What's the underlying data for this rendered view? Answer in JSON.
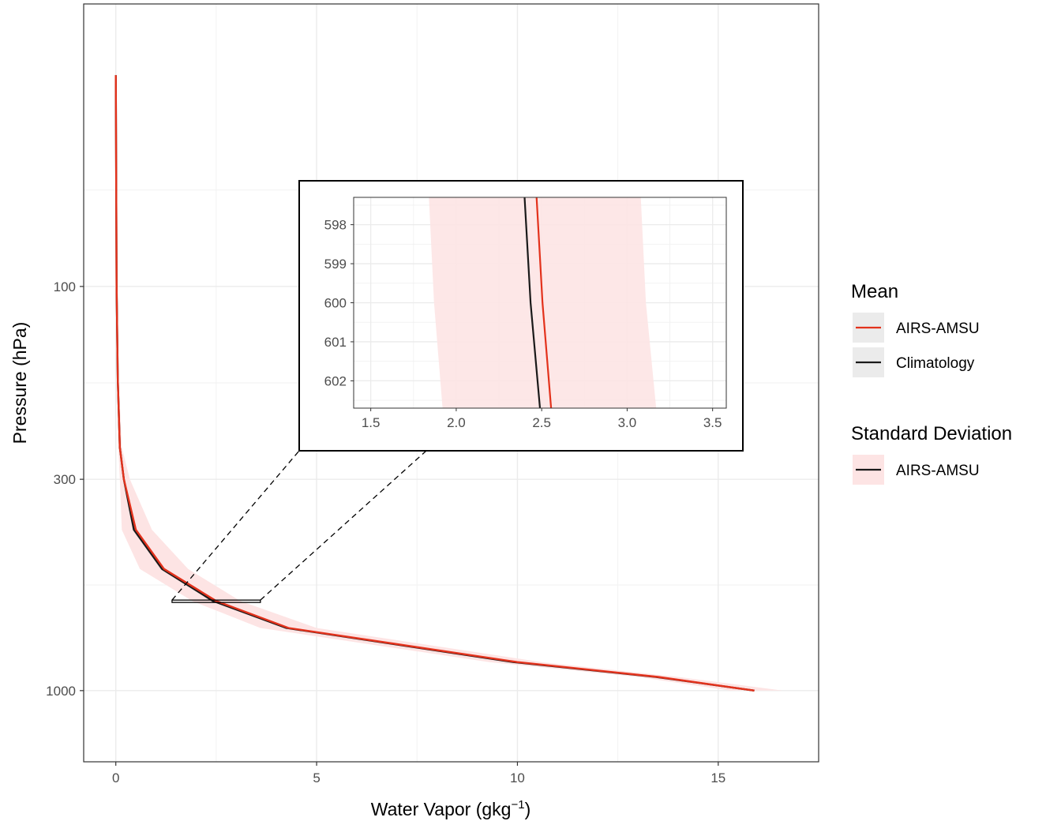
{
  "chart_data": [
    {
      "type": "line",
      "xlabel": "Water Vapor (gkg",
      "xlabel_sup": "−1",
      "xlabel_close": ")",
      "ylabel": "Pressure (hPa)",
      "x_ticks": [
        0,
        5,
        10,
        15
      ],
      "x_tick_labels": [
        "0",
        "5",
        "10",
        "15"
      ],
      "xlim": [
        -0.8,
        17.5
      ],
      "y_scale": "log-reversed",
      "y_ticks": [
        100,
        300,
        1000
      ],
      "y_tick_labels": [
        "100",
        "300",
        "1000"
      ],
      "ylim": [
        20,
        1500
      ],
      "grid": true,
      "series": [
        {
          "name": "AIRS-AMSU",
          "color": "#e3321c",
          "x": [
            0.0,
            0.02,
            0.05,
            0.1,
            0.2,
            0.5,
            1.2,
            2.5,
            4.3,
            10.0,
            13.5,
            15.9
          ],
          "y": [
            30,
            100,
            170,
            250,
            300,
            400,
            500,
            600,
            700,
            850,
            925,
            1000
          ]
        },
        {
          "name": "Climatology",
          "color": "#1a1a1a",
          "x": [
            0.0,
            0.02,
            0.05,
            0.1,
            0.2,
            0.45,
            1.15,
            2.42,
            4.25,
            9.9,
            13.45,
            15.9
          ],
          "y": [
            30,
            100,
            170,
            250,
            300,
            400,
            500,
            600,
            700,
            850,
            925,
            1000
          ]
        }
      ],
      "band": {
        "name": "AIRS-AMSU",
        "color": "#fde4e4",
        "y": [
          30,
          100,
          170,
          250,
          300,
          400,
          500,
          600,
          700,
          850,
          925,
          1000
        ],
        "lower": [
          0.0,
          0.01,
          0.03,
          0.06,
          0.1,
          0.15,
          0.6,
          1.9,
          3.6,
          9.3,
          13.0,
          15.3
        ],
        "upper": [
          0.0,
          0.03,
          0.07,
          0.15,
          0.35,
          0.9,
          1.8,
          3.1,
          5.0,
          10.6,
          14.0,
          16.6
        ]
      },
      "zoom_box": {
        "x": [
          1.4,
          3.6
        ],
        "y": [
          597,
          603
        ]
      }
    },
    {
      "type": "line",
      "role": "inset",
      "x_ticks": [
        1.5,
        2.0,
        2.5,
        3.0,
        3.5
      ],
      "x_tick_labels": [
        "1.5",
        "2.0",
        "2.5",
        "3.0",
        "3.5"
      ],
      "xlim": [
        1.4,
        3.58
      ],
      "y_ticks": [
        598,
        599,
        600,
        601,
        602
      ],
      "y_tick_labels": [
        "598",
        "599",
        "600",
        "601",
        "602"
      ],
      "ylim": [
        597.3,
        602.7
      ],
      "y_reversed": true,
      "grid": true,
      "series": [
        {
          "name": "AIRS-AMSU",
          "color": "#e3321c",
          "x": [
            2.47,
            2.505,
            2.555
          ],
          "y": [
            597.3,
            600.0,
            602.7
          ]
        },
        {
          "name": "Climatology",
          "color": "#1a1a1a",
          "x": [
            2.4,
            2.435,
            2.49
          ],
          "y": [
            597.3,
            600.0,
            602.7
          ]
        }
      ],
      "band": {
        "name": "AIRS-AMSU",
        "color": "#fde4e4",
        "y": [
          597.3,
          600.0,
          602.7
        ],
        "lower": [
          1.84,
          1.87,
          1.92
        ],
        "upper": [
          3.08,
          3.11,
          3.17
        ]
      }
    }
  ],
  "legend": {
    "mean_title": "Mean",
    "mean_items": [
      {
        "label": "AIRS-AMSU",
        "color": "#e3321c"
      },
      {
        "label": "Climatology",
        "color": "#1a1a1a"
      }
    ],
    "sd_title": "Standard Deviation",
    "sd_items": [
      {
        "label": "AIRS-AMSU",
        "color": "#fde4e4",
        "line_color": "#1a1a1a"
      }
    ]
  }
}
